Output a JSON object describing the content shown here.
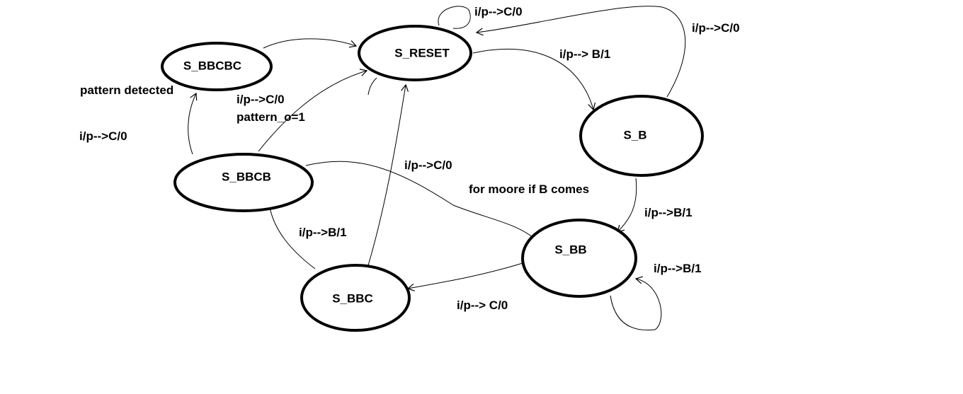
{
  "diagram": {
    "states": {
      "s_reset": "S_RESET",
      "s_b": "S_B",
      "s_bb": "S_BB",
      "s_bbc": "S_BBC",
      "s_bbcb": "S_BBCB",
      "s_bbcbc": "S_BBCBC"
    },
    "labels": {
      "reset_self_loop": "i/p-->C/0",
      "b_to_reset": "i/p-->C/0",
      "reset_to_b": "i/p--> B/1",
      "b_to_bb": "i/p-->B/1",
      "bb_self_loop": "i/p-->B/1",
      "bb_to_bbc": "i/p--> C/0",
      "bbc_to_reset": "i/p-->C/0",
      "bbcb_to_bb_note": "for moore if B comes",
      "bbc_to_bbcb": "i/p-->B/1",
      "bbcb_to_reset": "i/p-->C/0",
      "pattern_output": "pattern_o=1",
      "bbcb_to_bbcbc": "i/p-->C/0",
      "pattern_detected": "pattern detected"
    }
  }
}
